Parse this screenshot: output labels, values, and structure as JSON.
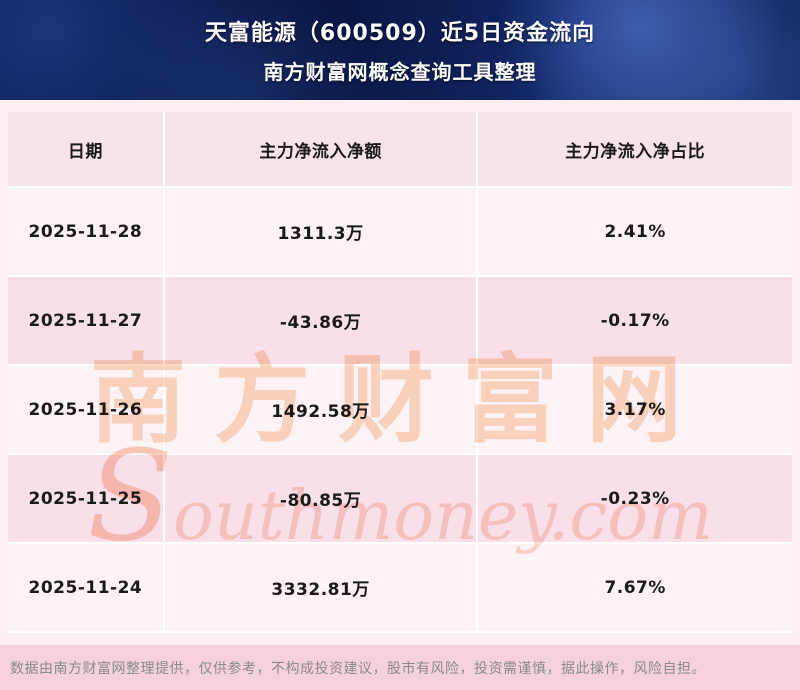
{
  "header": {
    "title": "天富能源（600509）近5日资金流向",
    "subtitle": "南方财富网概念查询工具整理"
  },
  "table": {
    "columns": [
      "日期",
      "主力净流入净额",
      "主力净流入净占比"
    ],
    "rows": [
      {
        "date": "2025-11-28",
        "amount": "1311.3万",
        "ratio": "2.41%"
      },
      {
        "date": "2025-11-27",
        "amount": "-43.86万",
        "ratio": "-0.17%"
      },
      {
        "date": "2025-11-26",
        "amount": "1492.58万",
        "ratio": "3.17%"
      },
      {
        "date": "2025-11-25",
        "amount": "-80.85万",
        "ratio": "-0.23%"
      },
      {
        "date": "2025-11-24",
        "amount": "3332.81万",
        "ratio": "7.67%"
      }
    ]
  },
  "chart_data": {
    "type": "table",
    "title": "天富能源（600509）近5日资金流向",
    "subtitle": "南方财富网概念查询工具整理",
    "columns": [
      "日期",
      "主力净流入净额",
      "主力净流入净占比"
    ],
    "rows": [
      [
        "2025-11-28",
        "1311.3万",
        "2.41%"
      ],
      [
        "2025-11-27",
        "-43.86万",
        "-0.17%"
      ],
      [
        "2025-11-26",
        "1492.58万",
        "3.17%"
      ],
      [
        "2025-11-25",
        "-80.85万",
        "-0.23%"
      ],
      [
        "2025-11-24",
        "3332.81万",
        "7.67%"
      ]
    ],
    "main_net_inflow_wan": [
      1311.3,
      -43.86,
      1492.58,
      -80.85,
      3332.81
    ],
    "main_net_inflow_pct": [
      2.41,
      -0.17,
      3.17,
      -0.23,
      7.67
    ]
  },
  "watermark": {
    "cn": "南方财富网",
    "en": "Southmoney.com"
  },
  "footer": {
    "disclaimer": "数据由南方财富网整理提供，仅供参考，不构成投资建议，股市有风险，投资需谨慎，据此操作，风险自担。"
  },
  "colors": {
    "hero_bg": "#0a1a52",
    "row_light": "#fdf2f6",
    "row_dark": "#f8dfe9",
    "header_row_bg": "#f8e2ec",
    "footer_bg": "#f5d0de",
    "watermark": "#f3aa6e",
    "title_text": "#ffffff",
    "cell_text": "#1a1a1a"
  }
}
